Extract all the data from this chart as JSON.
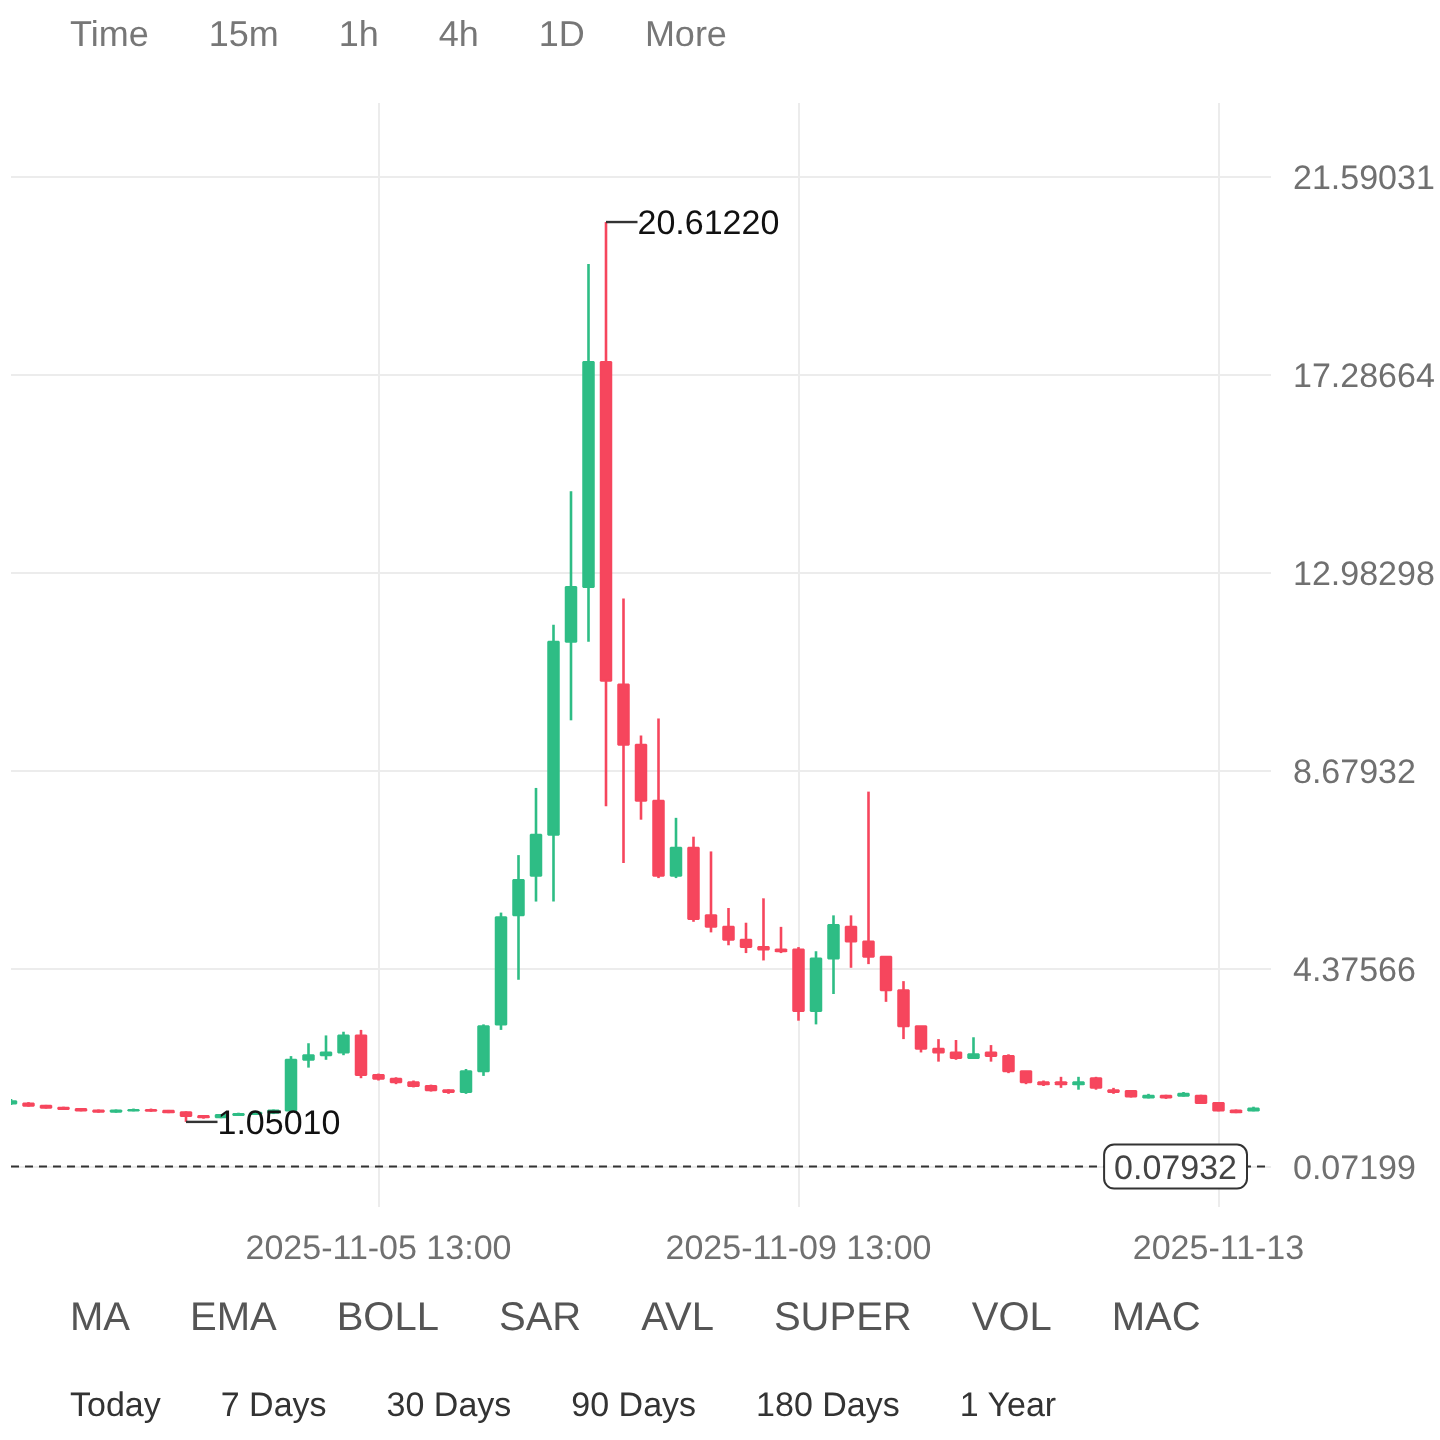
{
  "chart_data": {
    "type": "candlestick",
    "x": [
      "2025-11-02T01:00",
      "2025-11-02T05:00",
      "2025-11-02T09:00",
      "2025-11-02T13:00",
      "2025-11-02T17:00",
      "2025-11-02T21:00",
      "2025-11-03T01:00",
      "2025-11-03T05:00",
      "2025-11-03T09:00",
      "2025-11-03T13:00",
      "2025-11-03T17:00",
      "2025-11-03T21:00",
      "2025-11-04T01:00",
      "2025-11-04T05:00",
      "2025-11-04T09:00",
      "2025-11-04T13:00",
      "2025-11-04T17:00",
      "2025-11-04T21:00",
      "2025-11-05T01:00",
      "2025-11-05T05:00",
      "2025-11-05T09:00",
      "2025-11-05T13:00",
      "2025-11-05T17:00",
      "2025-11-05T21:00",
      "2025-11-06T01:00",
      "2025-11-06T05:00",
      "2025-11-06T09:00",
      "2025-11-06T13:00",
      "2025-11-06T17:00",
      "2025-11-06T21:00",
      "2025-11-07T01:00",
      "2025-11-07T05:00",
      "2025-11-07T09:00",
      "2025-11-07T13:00",
      "2025-11-07T17:00",
      "2025-11-07T21:00",
      "2025-11-08T01:00",
      "2025-11-08T05:00",
      "2025-11-08T09:00",
      "2025-11-08T13:00",
      "2025-11-08T17:00",
      "2025-11-08T21:00",
      "2025-11-09T01:00",
      "2025-11-09T05:00",
      "2025-11-09T09:00",
      "2025-11-09T13:00",
      "2025-11-09T17:00",
      "2025-11-09T21:00",
      "2025-11-10T01:00",
      "2025-11-10T05:00",
      "2025-11-10T09:00",
      "2025-11-10T13:00",
      "2025-11-10T17:00",
      "2025-11-10T21:00",
      "2025-11-11T01:00",
      "2025-11-11T05:00",
      "2025-11-11T09:00",
      "2025-11-11T13:00",
      "2025-11-11T17:00",
      "2025-11-11T21:00",
      "2025-11-12T01:00",
      "2025-11-12T05:00",
      "2025-11-12T09:00",
      "2025-11-12T13:00",
      "2025-11-12T17:00",
      "2025-11-12T21:00",
      "2025-11-13T01:00",
      "2025-11-13T05:00",
      "2025-11-13T09:00",
      "2025-11-13T13:00",
      "2025-11-13T17:00",
      "2025-11-13T21:00"
    ],
    "ohlc": [
      [
        1.45,
        1.55,
        1.42,
        1.5
      ],
      [
        1.45,
        1.48,
        1.38,
        1.4
      ],
      [
        1.4,
        1.42,
        1.34,
        1.36
      ],
      [
        1.36,
        1.38,
        1.31,
        1.33
      ],
      [
        1.33,
        1.35,
        1.28,
        1.3
      ],
      [
        1.3,
        1.32,
        1.25,
        1.27
      ],
      [
        1.27,
        1.32,
        1.25,
        1.3
      ],
      [
        1.3,
        1.34,
        1.28,
        1.31
      ],
      [
        1.31,
        1.34,
        1.27,
        1.29
      ],
      [
        1.29,
        1.31,
        1.24,
        1.26
      ],
      [
        1.26,
        1.28,
        1.0501,
        1.18
      ],
      [
        1.18,
        1.2,
        1.12,
        1.15
      ],
      [
        1.15,
        1.22,
        1.13,
        1.2
      ],
      [
        1.2,
        1.25,
        1.18,
        1.22
      ],
      [
        1.22,
        1.28,
        1.2,
        1.25
      ],
      [
        1.25,
        1.32,
        1.22,
        1.3
      ],
      [
        1.3,
        2.48,
        1.28,
        2.4
      ],
      [
        2.4,
        2.76,
        2.23,
        2.5
      ],
      [
        2.5,
        2.93,
        2.4,
        2.56
      ],
      [
        2.56,
        3.01,
        2.5,
        2.93
      ],
      [
        2.93,
        3.05,
        2.0,
        2.07
      ],
      [
        2.07,
        2.1,
        1.95,
        1.99
      ],
      [
        1.99,
        2.02,
        1.87,
        1.91
      ],
      [
        1.91,
        1.95,
        1.8,
        1.83
      ],
      [
        1.83,
        1.86,
        1.71,
        1.74
      ],
      [
        1.74,
        1.76,
        1.66,
        1.7
      ],
      [
        1.7,
        2.2,
        1.66,
        2.15
      ],
      [
        2.15,
        3.17,
        2.05,
        3.13
      ],
      [
        3.17,
        5.6,
        3.05,
        5.5
      ],
      [
        5.54,
        6.85,
        4.14,
        6.31
      ],
      [
        6.4,
        8.31,
        5.84,
        7.29
      ],
      [
        7.29,
        11.86,
        5.84,
        11.49
      ],
      [
        11.49,
        14.76,
        9.78,
        12.68
      ],
      [
        12.68,
        19.7,
        11.49,
        17.57
      ],
      [
        17.57,
        20.6122,
        7.91,
        10.64
      ],
      [
        10.56,
        12.43,
        6.68,
        9.25
      ],
      [
        9.25,
        9.45,
        7.62,
        8.03
      ],
      [
        8.03,
        9.82,
        6.35,
        6.4
      ],
      [
        6.4,
        7.66,
        6.35,
        7.01
      ],
      [
        7.01,
        7.25,
        5.4,
        5.46
      ],
      [
        5.54,
        6.93,
        5.17,
        5.29
      ],
      [
        5.29,
        5.7,
        4.89,
        5.01
      ],
      [
        5.01,
        5.38,
        4.72,
        4.85
      ],
      [
        4.85,
        5.91,
        4.56,
        4.8
      ],
      [
        4.8,
        5.29,
        4.72,
        4.76
      ],
      [
        4.8,
        4.85,
        3.25,
        3.46
      ],
      [
        3.46,
        4.76,
        3.17,
        4.6
      ],
      [
        4.6,
        5.54,
        3.83,
        5.33
      ],
      [
        5.29,
        5.54,
        4.4,
        4.97
      ],
      [
        4.97,
        8.23,
        4.48,
        4.64
      ],
      [
        4.64,
        4.64,
        3.66,
        3.91
      ],
      [
        3.91,
        4.11,
        2.85,
        3.13
      ],
      [
        3.13,
        3.13,
        2.56,
        2.64
      ],
      [
        2.64,
        2.85,
        2.36,
        2.56
      ],
      [
        2.56,
        2.83,
        2.4,
        2.44
      ],
      [
        2.44,
        2.89,
        2.44,
        2.52
      ],
      [
        2.56,
        2.72,
        2.36,
        2.48
      ],
      [
        2.48,
        2.52,
        2.11,
        2.15
      ],
      [
        2.15,
        2.15,
        1.87,
        1.91
      ],
      [
        1.91,
        1.95,
        1.83,
        1.87
      ],
      [
        1.91,
        2.03,
        1.79,
        1.87
      ],
      [
        1.87,
        2.03,
        1.75,
        1.91
      ],
      [
        2.0,
        2.03,
        1.75,
        1.79
      ],
      [
        1.74,
        1.79,
        1.66,
        1.7
      ],
      [
        1.72,
        1.74,
        1.58,
        1.6
      ],
      [
        1.58,
        1.66,
        1.56,
        1.62
      ],
      [
        1.62,
        1.64,
        1.55,
        1.58
      ],
      [
        1.62,
        1.7,
        1.6,
        1.66
      ],
      [
        1.62,
        1.64,
        1.44,
        1.46
      ],
      [
        1.46,
        1.48,
        1.28,
        1.3
      ],
      [
        1.3,
        1.32,
        1.24,
        1.26
      ],
      [
        1.3,
        1.38,
        1.28,
        1.34
      ]
    ],
    "colors": [
      "#2ebd85",
      "#f6465d",
      "#f6465d",
      "#f6465d",
      "#f6465d",
      "#f6465d",
      "#2ebd85",
      "#2ebd85",
      "#f6465d",
      "#f6465d",
      "#f6465d",
      "#f6465d",
      "#2ebd85",
      "#2ebd85",
      "#2ebd85",
      "#2ebd85",
      "#2ebd85",
      "#2ebd85",
      "#2ebd85",
      "#2ebd85",
      "#f6465d",
      "#f6465d",
      "#f6465d",
      "#f6465d",
      "#f6465d",
      "#f6465d",
      "#2ebd85",
      "#2ebd85",
      "#2ebd85",
      "#2ebd85",
      "#2ebd85",
      "#2ebd85",
      "#2ebd85",
      "#2ebd85",
      "#f6465d",
      "#f6465d",
      "#f6465d",
      "#f6465d",
      "#2ebd85",
      "#f6465d",
      "#f6465d",
      "#f6465d",
      "#f6465d",
      "#f6465d",
      "#f6465d",
      "#f6465d",
      "#2ebd85",
      "#2ebd85",
      "#f6465d",
      "#f6465d",
      "#f6465d",
      "#f6465d",
      "#f6465d",
      "#f6465d",
      "#f6465d",
      "#2ebd85",
      "#f6465d",
      "#f6465d",
      "#f6465d",
      "#f6465d",
      "#f6465d",
      "#2ebd85",
      "#f6465d",
      "#f6465d",
      "#f6465d",
      "#2ebd85",
      "#f6465d",
      "#2ebd85",
      "#f6465d",
      "#f6465d",
      "#f6465d",
      "#2ebd85"
    ],
    "xlim": [
      "2025-11-02T01:00",
      "2025-11-14T01:00"
    ],
    "xticks": [
      {
        "value": "2025-11-05T13:00",
        "label": "2025-11-05 13:00"
      },
      {
        "value": "2025-11-09T13:00",
        "label": "2025-11-09 13:00"
      },
      {
        "value": "2025-11-13T13:00",
        "label": "2025-11-13"
      }
    ],
    "ylim": [
      -0.8,
      23.2
    ],
    "yticks": [
      0.07199,
      4.37566,
      8.67932,
      12.98298,
      17.28664,
      21.59031
    ],
    "grid": true,
    "ref_lines": [
      {
        "axis": "y",
        "value": 0.07932,
        "label": "0.07932",
        "line_style": "dashed",
        "color": "#333333"
      }
    ],
    "annotations": [
      {
        "text": "20.61220",
        "x": "2025-11-07T17:00",
        "y": 20.6122
      },
      {
        "text": "1.05010",
        "x": "2025-11-03T17:00",
        "y": 1.0501
      },
      "Time",
      "15m",
      "1h",
      "4h",
      "1D",
      "More",
      "MA",
      "EMA",
      "BOLL",
      "SAR",
      "AVL",
      "SUPER",
      "VOL",
      "MAC",
      "Today",
      "7 Days",
      "30 Days",
      "90 Days",
      "180 Days",
      "1 Year"
    ]
  }
}
